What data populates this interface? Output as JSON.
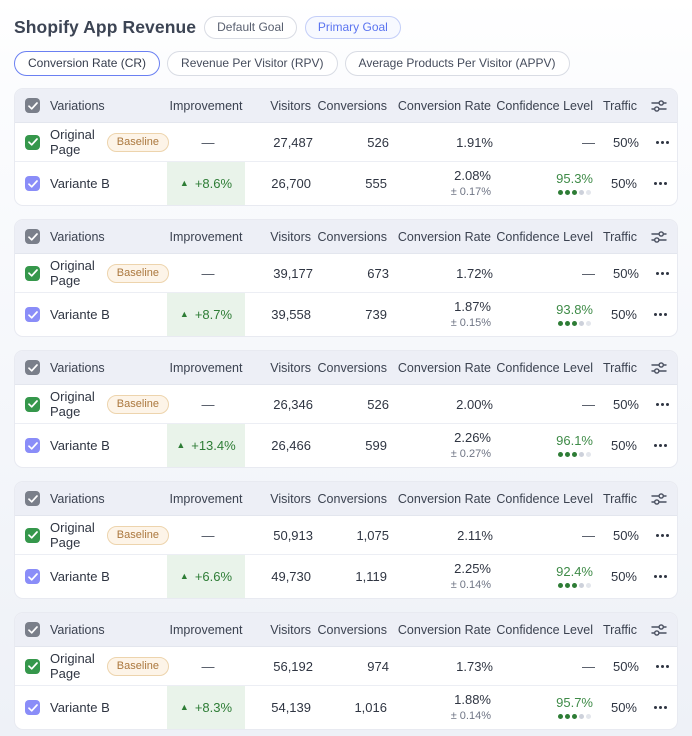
{
  "page": {
    "title": "Shopify App Revenue"
  },
  "goal_tabs": [
    {
      "label": "Default Goal",
      "active": false
    },
    {
      "label": "Primary Goal",
      "active": true
    }
  ],
  "metric_tabs": [
    {
      "label": "Conversion Rate (CR)",
      "active": true
    },
    {
      "label": "Revenue Per Visitor (RPV)",
      "active": false
    },
    {
      "label": "Average Products Per Visitor (APPV)",
      "active": false
    }
  ],
  "columns": {
    "variations": "Variations",
    "improvement": "Improvement",
    "visitors": "Visitors",
    "conversions": "Conversions",
    "conversion_rate": "Conversion Rate",
    "confidence_level": "Confidence Level",
    "traffic": "Traffic"
  },
  "icons": {
    "triangle_up": "▲",
    "filter": "sliders-icon",
    "row_menu": "ellipsis-icon",
    "checkbox_check": "checkmark-icon"
  },
  "colors": {
    "accent_blue": "#5b74f0",
    "positive_green": "#2e7d36",
    "baseline_badge_text": "#ab783e",
    "checkbox_green": "#35974b",
    "checkbox_purple": "#8a8df8",
    "header_bg": "#edeff6"
  },
  "tables": [
    {
      "baseline": {
        "name": "Original Page",
        "badge": "Baseline",
        "improvement": "—",
        "visitors": "27,487",
        "conversions": "526",
        "rate": "1.91%",
        "confidence": "—",
        "traffic": "50%"
      },
      "variant": {
        "name": "Variante B",
        "improvement": "+8.6%",
        "visitors": "26,700",
        "conversions": "555",
        "rate": "2.08%",
        "rate_margin": "± 0.17%",
        "confidence": "95.3%",
        "confidence_dots": 3,
        "traffic": "50%"
      }
    },
    {
      "baseline": {
        "name": "Original Page",
        "badge": "Baseline",
        "improvement": "—",
        "visitors": "39,177",
        "conversions": "673",
        "rate": "1.72%",
        "confidence": "—",
        "traffic": "50%"
      },
      "variant": {
        "name": "Variante B",
        "improvement": "+8.7%",
        "visitors": "39,558",
        "conversions": "739",
        "rate": "1.87%",
        "rate_margin": "± 0.15%",
        "confidence": "93.8%",
        "confidence_dots": 3,
        "traffic": "50%"
      }
    },
    {
      "baseline": {
        "name": "Original Page",
        "badge": "Baseline",
        "improvement": "—",
        "visitors": "26,346",
        "conversions": "526",
        "rate": "2.00%",
        "confidence": "—",
        "traffic": "50%"
      },
      "variant": {
        "name": "Variante B",
        "improvement": "+13.4%",
        "visitors": "26,466",
        "conversions": "599",
        "rate": "2.26%",
        "rate_margin": "± 0.27%",
        "confidence": "96.1%",
        "confidence_dots": 3,
        "traffic": "50%"
      }
    },
    {
      "baseline": {
        "name": "Original Page",
        "badge": "Baseline",
        "improvement": "—",
        "visitors": "50,913",
        "conversions": "1,075",
        "rate": "2.11%",
        "confidence": "—",
        "traffic": "50%"
      },
      "variant": {
        "name": "Variante B",
        "improvement": "+6.6%",
        "visitors": "49,730",
        "conversions": "1,119",
        "rate": "2.25%",
        "rate_margin": "± 0.14%",
        "confidence": "92.4%",
        "confidence_dots": 3,
        "traffic": "50%"
      }
    },
    {
      "baseline": {
        "name": "Original Page",
        "badge": "Baseline",
        "improvement": "—",
        "visitors": "56,192",
        "conversions": "974",
        "rate": "1.73%",
        "confidence": "—",
        "traffic": "50%"
      },
      "variant": {
        "name": "Variante B",
        "improvement": "+8.3%",
        "visitors": "54,139",
        "conversions": "1,016",
        "rate": "1.88%",
        "rate_margin": "± 0.14%",
        "confidence": "95.7%",
        "confidence_dots": 3,
        "traffic": "50%"
      }
    }
  ]
}
